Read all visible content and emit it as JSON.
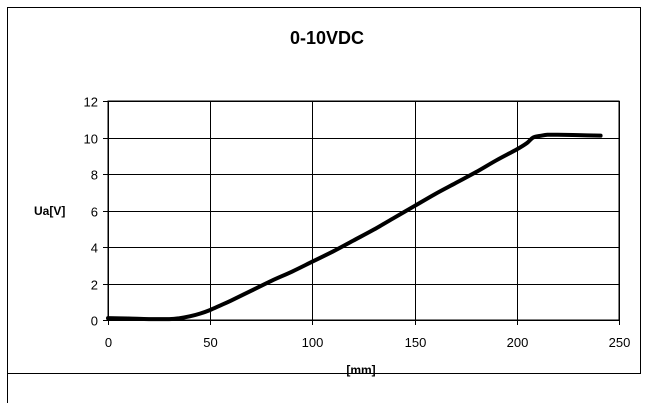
{
  "chart_data": {
    "type": "line",
    "title": "0-10VDC",
    "xlabel": "[mm]",
    "ylabel": "Ua[V]",
    "xlim": [
      0,
      250
    ],
    "ylim": [
      0,
      12
    ],
    "xticks": [
      "0",
      "50",
      "100",
      "150",
      "200",
      "250"
    ],
    "yticks": [
      "0",
      "2",
      "4",
      "6",
      "8",
      "10",
      "12"
    ],
    "grid": true,
    "legend": "none",
    "series": [
      {
        "color": "#000000",
        "x": [
          0,
          10,
          20,
          30,
          35,
          40,
          45,
          50,
          55,
          60,
          70,
          80,
          90,
          100,
          110,
          120,
          130,
          140,
          150,
          160,
          170,
          180,
          190,
          200,
          205,
          208,
          212,
          215,
          220,
          230,
          241
        ],
        "y": [
          0.1,
          0.08,
          0.05,
          0.05,
          0.1,
          0.2,
          0.35,
          0.55,
          0.8,
          1.05,
          1.6,
          2.15,
          2.65,
          3.2,
          3.75,
          4.35,
          4.95,
          5.6,
          6.25,
          6.9,
          7.5,
          8.1,
          8.75,
          9.35,
          9.7,
          10.0,
          10.1,
          10.15,
          10.15,
          10.13,
          10.1
        ]
      }
    ]
  }
}
